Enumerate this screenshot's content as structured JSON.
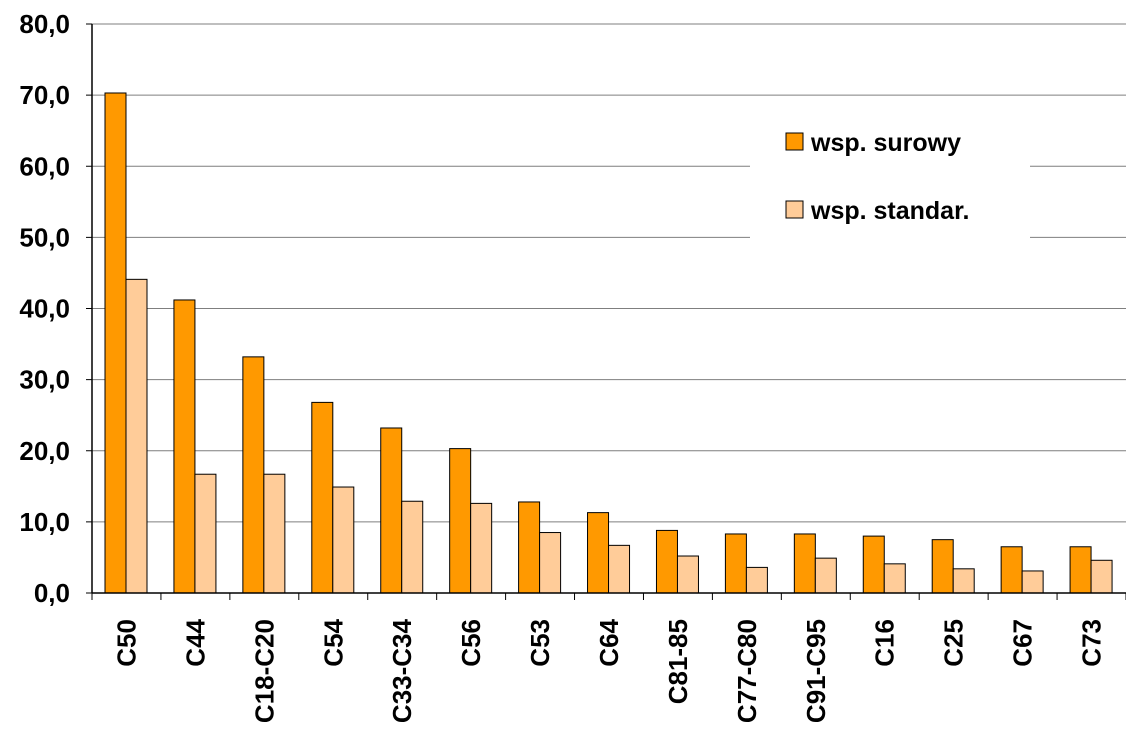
{
  "chart_data": {
    "type": "bar",
    "categories": [
      "C50",
      "C44",
      "C18-C20",
      "C54",
      "C33-C34",
      "C56",
      "C53",
      "C64",
      "C81-85",
      "C77-C80",
      "C91-C95",
      "C16",
      "C25",
      "C67",
      "C73"
    ],
    "series": [
      {
        "name": "wsp. surowy",
        "color": "#FF9900",
        "values": [
          70.3,
          41.2,
          33.2,
          26.8,
          23.2,
          20.3,
          12.8,
          11.3,
          8.8,
          8.3,
          8.3,
          8.0,
          7.5,
          6.5,
          6.5
        ]
      },
      {
        "name": "wsp. standar.",
        "color": "#FFCC99",
        "values": [
          44.1,
          16.7,
          16.7,
          14.9,
          12.9,
          12.6,
          8.5,
          6.7,
          5.2,
          3.6,
          4.9,
          4.1,
          3.4,
          3.1,
          4.6
        ]
      }
    ],
    "ylim": [
      0,
      80
    ],
    "yticks": [
      "0,0",
      "10,0",
      "20,0",
      "30,0",
      "40,0",
      "50,0",
      "60,0",
      "70,0",
      "80,0"
    ],
    "grid": true,
    "legend_position": "right",
    "title": "",
    "xlabel": "",
    "ylabel": ""
  }
}
